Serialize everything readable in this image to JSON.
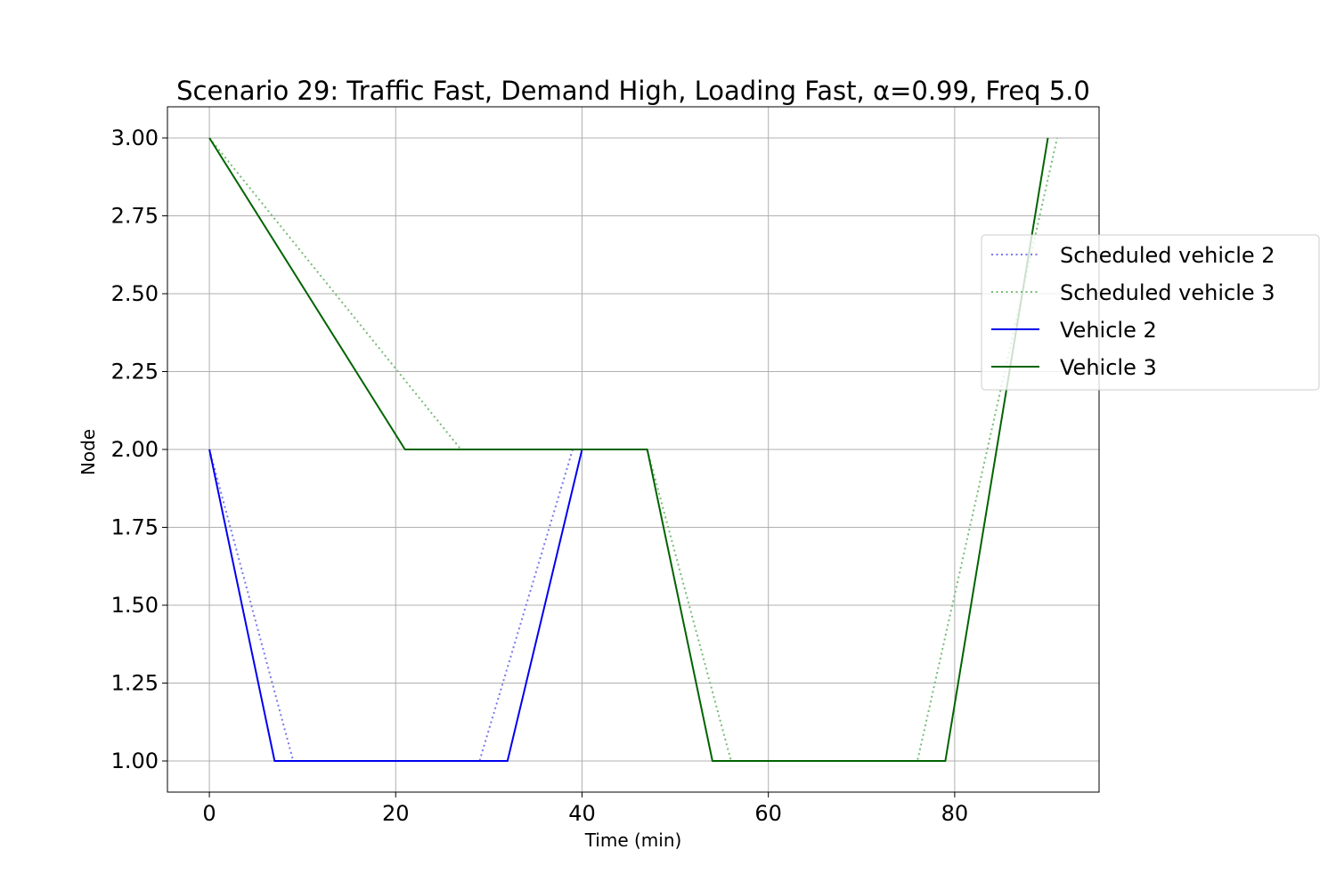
{
  "chart_data": {
    "type": "line",
    "title": "Scenario 29: Traffic Fast, Demand High, Loading Fast, α=0.99, Freq 5.0",
    "xlabel": "Time (min)",
    "ylabel": "Node",
    "xlim": [
      -4.5,
      95.5
    ],
    "ylim": [
      0.9,
      3.1
    ],
    "xticks": [
      0,
      20,
      40,
      60,
      80
    ],
    "xtick_labels": [
      "0",
      "20",
      "40",
      "60",
      "80"
    ],
    "yticks": [
      1.0,
      1.25,
      1.5,
      1.75,
      2.0,
      2.25,
      2.5,
      2.75,
      3.0
    ],
    "ytick_labels": [
      "1.00",
      "1.25",
      "1.50",
      "1.75",
      "2.00",
      "2.25",
      "2.50",
      "2.75",
      "3.00"
    ],
    "grid": true,
    "legend_position": "right",
    "series": [
      {
        "name": "Scheduled vehicle 2",
        "style": "dotted",
        "color": "#7777ee",
        "points": [
          [
            0,
            2
          ],
          [
            9,
            1
          ],
          [
            29,
            1
          ],
          [
            39,
            2
          ],
          [
            40,
            2
          ]
        ]
      },
      {
        "name": "Scheduled vehicle 3",
        "style": "dotted",
        "color": "#77bb77",
        "points": [
          [
            0,
            3
          ],
          [
            27,
            2
          ],
          [
            47,
            2
          ],
          [
            56,
            1
          ],
          [
            76,
            1
          ],
          [
            91,
            3
          ]
        ]
      },
      {
        "name": "Vehicle 2",
        "style": "solid",
        "color": "#0000ee",
        "points": [
          [
            0,
            2
          ],
          [
            7,
            1
          ],
          [
            32,
            1
          ],
          [
            40,
            2
          ]
        ]
      },
      {
        "name": "Vehicle 3",
        "style": "solid",
        "color": "#006400",
        "points": [
          [
            0,
            3
          ],
          [
            21,
            2
          ],
          [
            47,
            2
          ],
          [
            54,
            1
          ],
          [
            79,
            1
          ],
          [
            90,
            3
          ]
        ]
      }
    ]
  }
}
